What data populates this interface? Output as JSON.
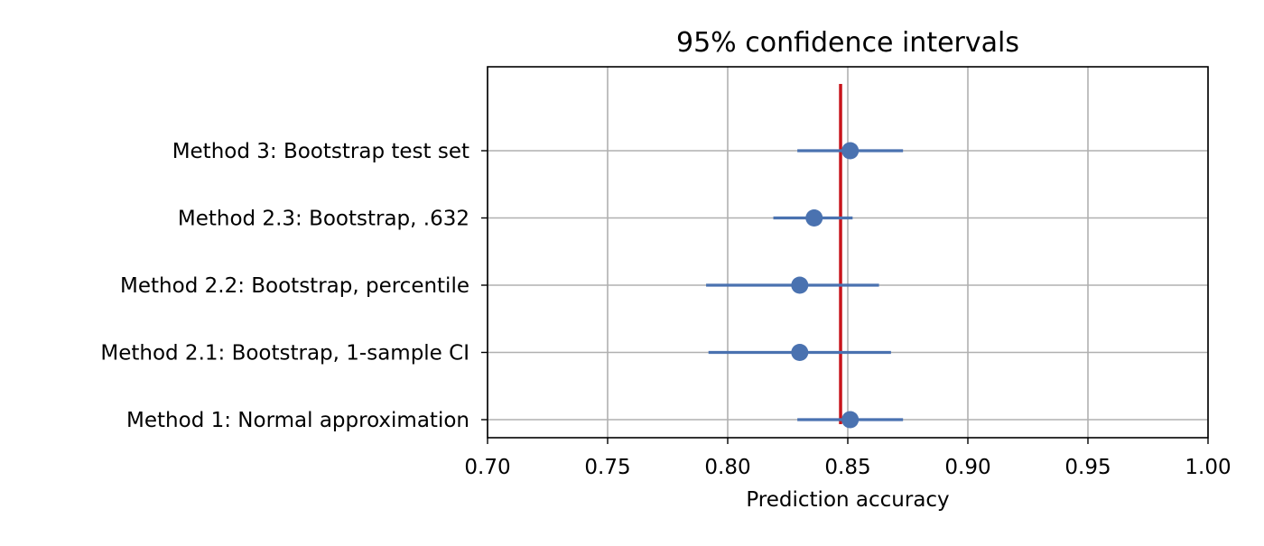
{
  "chart_data": {
    "type": "scatter",
    "title": "95% confidence intervals",
    "xlabel": "Prediction accuracy",
    "ylabel": "",
    "xlim": [
      0.7,
      1.0
    ],
    "x_ticks": [
      "0.70",
      "0.75",
      "0.80",
      "0.85",
      "0.90",
      "0.95",
      "1.00"
    ],
    "grid": true,
    "categories": [
      "Method 1: Normal approximation",
      "Method 2.1: Bootstrap, 1-sample CI",
      "Method 2.2: Bootstrap, percentile",
      "Method 2.3: Bootstrap, .632",
      "Method 3: Bootstrap test set"
    ],
    "series": [
      {
        "estimates": [
          0.851,
          0.83,
          0.83,
          0.836,
          0.851
        ],
        "lower": [
          0.829,
          0.792,
          0.791,
          0.819,
          0.829
        ],
        "upper": [
          0.873,
          0.868,
          0.863,
          0.852,
          0.873
        ]
      }
    ],
    "reference_line": {
      "x": 0.847
    },
    "colors": {
      "marker": "#4a72b0",
      "errorbar": "#4a72b0",
      "reference_line": "#c8141b",
      "grid": "#b0b0b0",
      "axes": "#000000"
    }
  }
}
